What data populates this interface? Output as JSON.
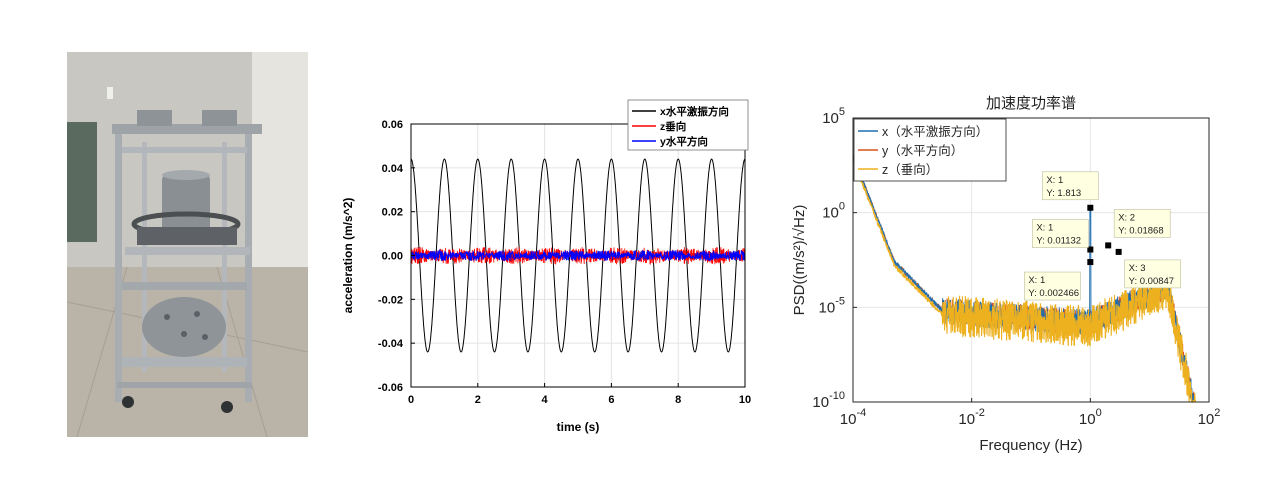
{
  "photo": {
    "description_icon": "vibration-test-rig-photo"
  },
  "chart_data": [
    {
      "type": "line",
      "title": "",
      "xlabel": "time (s)",
      "ylabel": "acceleration (m/s^2)",
      "xlim": [
        0,
        10
      ],
      "ylim": [
        -0.06,
        0.06
      ],
      "x_ticks": [
        "0",
        "2",
        "4",
        "6",
        "8",
        "10"
      ],
      "y_ticks": [
        "0.06",
        "0.04",
        "0.02",
        "0.00",
        "-0.02",
        "-0.04",
        "-0.06"
      ],
      "grid": true,
      "legend_position": "top-right",
      "series": [
        {
          "name": "x水平激振方向",
          "color": "#000000",
          "shape": "sine",
          "amplitude": 0.044,
          "frequency_hz": 1.0,
          "phase_deg": 90
        },
        {
          "name": "z垂向",
          "color": "#ff0000",
          "shape": "noise",
          "amplitude": 0.004
        },
        {
          "name": "y水平方向",
          "color": "#0000ff",
          "shape": "noise",
          "amplitude": 0.0025
        }
      ]
    },
    {
      "type": "line",
      "title": "加速度功率谱",
      "xlabel": "Frequency (Hz)",
      "ylabel": "PSD((m/s²)/√Hz)",
      "xscale": "log",
      "yscale": "log",
      "xlim": [
        0.0001,
        100
      ],
      "ylim": [
        1e-10,
        100000
      ],
      "x_ticks": [
        {
          "base": "10",
          "exp": "-4"
        },
        {
          "base": "10",
          "exp": "-2"
        },
        {
          "base": "10",
          "exp": "0"
        },
        {
          "base": "10",
          "exp": "2"
        }
      ],
      "y_ticks": [
        {
          "base": "10",
          "exp": "5"
        },
        {
          "base": "10",
          "exp": "0"
        },
        {
          "base": "10",
          "exp": "-5"
        },
        {
          "base": "10",
          "exp": "-10"
        }
      ],
      "grid": true,
      "legend_position": "top-left",
      "series": [
        {
          "name": "x（水平激振方向）",
          "color": "#1f6fb0"
        },
        {
          "name": "y（水平方向）",
          "color": "#d95319"
        },
        {
          "name": "z（垂向）",
          "color": "#edb120"
        }
      ],
      "datatips": [
        {
          "x_label": "X: 1",
          "y_label": "Y: 1.813",
          "x": 1,
          "y": 1.813
        },
        {
          "x_label": "X: 1",
          "y_label": "Y: 0.01132",
          "x": 1,
          "y": 0.01132
        },
        {
          "x_label": "X: 1",
          "y_label": "Y: 0.002466",
          "x": 1,
          "y": 0.002466
        },
        {
          "x_label": "X: 2",
          "y_label": "Y: 0.01868",
          "x": 2,
          "y": 0.01868
        },
        {
          "x_label": "X: 3",
          "y_label": "Y: 0.00847",
          "x": 3,
          "y": 0.00847
        }
      ]
    }
  ]
}
